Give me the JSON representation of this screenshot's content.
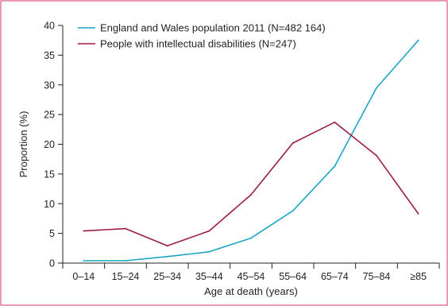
{
  "chart_data": {
    "type": "line",
    "categories": [
      "0–14",
      "15–24",
      "25–34",
      "35–44",
      "45–54",
      "55–64",
      "65–74",
      "75–84",
      "≥85"
    ],
    "series": [
      {
        "name": "England and Wales population 2011 (N=482 164)",
        "color": "#1aa5c2",
        "values": [
          0.4,
          0.4,
          1.1,
          1.9,
          4.2,
          8.8,
          16.3,
          29.5,
          37.5
        ]
      },
      {
        "name": "People with intellectual disabilities (N=247)",
        "color": "#9b1b47",
        "values": [
          5.4,
          5.8,
          2.9,
          5.4,
          11.5,
          20.2,
          23.7,
          18.1,
          8.3
        ]
      }
    ],
    "xlabel": "Age at death (years)",
    "ylabel": "Proportion (%)",
    "ylim": [
      0,
      40
    ],
    "yticks": [
      0,
      5,
      10,
      15,
      20,
      25,
      30,
      35,
      40
    ],
    "grid": false,
    "legend_position": "top-left",
    "frame_color": "#d6336c"
  }
}
